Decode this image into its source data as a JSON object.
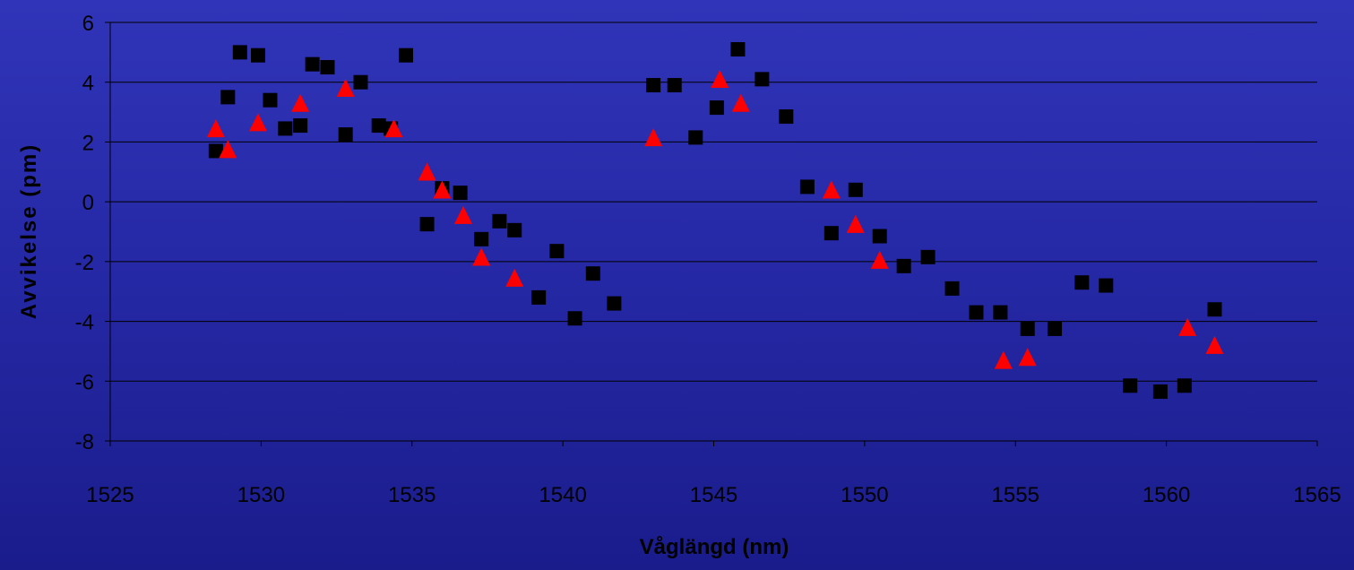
{
  "chart_data": {
    "type": "scatter",
    "title": "",
    "xlabel": "Våglängd (nm)",
    "ylabel": "Avvikelse (pm)",
    "xlim": [
      1525,
      1565
    ],
    "ylim": [
      -8,
      6
    ],
    "xticks": [
      "1525",
      "1530",
      "1535",
      "1540",
      "1545",
      "1550",
      "1555",
      "1560",
      "1565"
    ],
    "yticks": [
      "6",
      "4",
      "2",
      "0",
      "-2",
      "-4",
      "-6",
      "-8"
    ],
    "grid": "horizontal",
    "legend": "none",
    "series": [
      {
        "marker": "square",
        "color": "#000000",
        "points": [
          [
            1528.5,
            1.7
          ],
          [
            1528.9,
            3.5
          ],
          [
            1529.3,
            5.0
          ],
          [
            1529.9,
            4.9
          ],
          [
            1530.3,
            3.4
          ],
          [
            1530.8,
            2.45
          ],
          [
            1531.3,
            2.55
          ],
          [
            1531.7,
            4.6
          ],
          [
            1532.2,
            4.5
          ],
          [
            1532.8,
            2.25
          ],
          [
            1533.3,
            4.0
          ],
          [
            1533.9,
            2.55
          ],
          [
            1534.3,
            2.45
          ],
          [
            1534.8,
            4.9
          ],
          [
            1535.5,
            -0.75
          ],
          [
            1536.0,
            0.45
          ],
          [
            1536.6,
            0.3
          ],
          [
            1537.3,
            -1.25
          ],
          [
            1537.9,
            -0.65
          ],
          [
            1538.4,
            -0.95
          ],
          [
            1539.2,
            -3.2
          ],
          [
            1539.8,
            -1.65
          ],
          [
            1540.4,
            -3.9
          ],
          [
            1541.0,
            -2.4
          ],
          [
            1541.7,
            -3.4
          ],
          [
            1543.0,
            3.9
          ],
          [
            1543.7,
            3.9
          ],
          [
            1544.4,
            2.15
          ],
          [
            1545.1,
            3.15
          ],
          [
            1545.8,
            5.1
          ],
          [
            1546.6,
            4.1
          ],
          [
            1547.4,
            2.85
          ],
          [
            1548.1,
            0.5
          ],
          [
            1548.9,
            -1.05
          ],
          [
            1549.7,
            0.4
          ],
          [
            1550.5,
            -1.15
          ],
          [
            1551.3,
            -2.15
          ],
          [
            1552.1,
            -1.85
          ],
          [
            1552.9,
            -2.9
          ],
          [
            1553.7,
            -3.7
          ],
          [
            1554.5,
            -3.7
          ],
          [
            1555.4,
            -4.25
          ],
          [
            1556.3,
            -4.25
          ],
          [
            1557.2,
            -2.7
          ],
          [
            1558.0,
            -2.8
          ],
          [
            1558.8,
            -6.15
          ],
          [
            1559.8,
            -6.35
          ],
          [
            1560.6,
            -6.15
          ],
          [
            1561.6,
            -3.6
          ]
        ]
      },
      {
        "marker": "triangle",
        "color": "#ff0000",
        "points": [
          [
            1528.5,
            2.4
          ],
          [
            1528.9,
            1.7
          ],
          [
            1529.9,
            2.6
          ],
          [
            1531.3,
            3.25
          ],
          [
            1532.8,
            3.75
          ],
          [
            1534.4,
            2.4
          ],
          [
            1535.5,
            0.95
          ],
          [
            1536.0,
            0.35
          ],
          [
            1536.7,
            -0.5
          ],
          [
            1537.3,
            -1.9
          ],
          [
            1538.4,
            -2.6
          ],
          [
            1543.0,
            2.1
          ],
          [
            1545.2,
            4.05
          ],
          [
            1545.9,
            3.25
          ],
          [
            1548.9,
            0.35
          ],
          [
            1549.7,
            -0.8
          ],
          [
            1550.5,
            -2.0
          ],
          [
            1554.6,
            -5.35
          ],
          [
            1555.4,
            -5.25
          ],
          [
            1560.7,
            -4.25
          ],
          [
            1561.6,
            -4.85
          ]
        ]
      }
    ]
  }
}
